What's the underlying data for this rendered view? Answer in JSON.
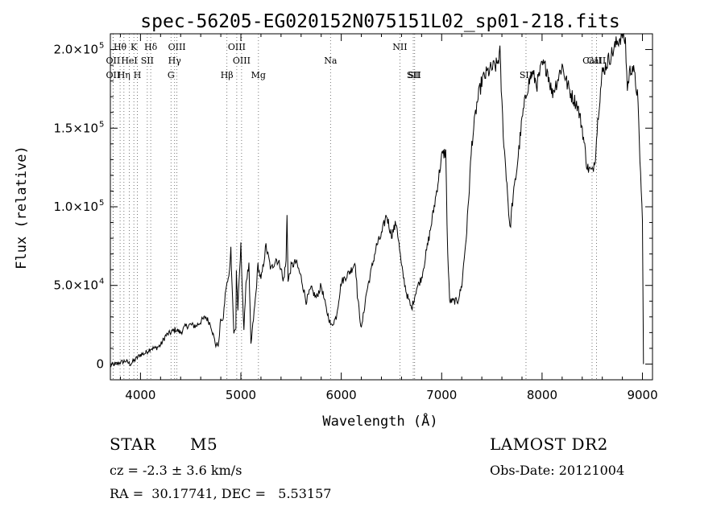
{
  "chart_data": {
    "type": "line",
    "title": "spec-56205-EG020152N075151L02_sp01-218.fits",
    "xlabel": "Wavelength (Å)",
    "ylabel": "Flux (relative)",
    "xlim": [
      3700,
      9100
    ],
    "ylim": [
      -0.1,
      2.1
    ],
    "y_multiplier_note": "×10^5",
    "xticks": [
      {
        "v": 4000,
        "label": "4000"
      },
      {
        "v": 5000,
        "label": "5000"
      },
      {
        "v": 6000,
        "label": "6000"
      },
      {
        "v": 7000,
        "label": "7000"
      },
      {
        "v": 8000,
        "label": "8000"
      },
      {
        "v": 9000,
        "label": "9000"
      }
    ],
    "yticks": [
      {
        "v": 0.0,
        "label": "0",
        "exp": ""
      },
      {
        "v": 0.5,
        "label": "5.0×10",
        "exp": "4"
      },
      {
        "v": 1.0,
        "label": "1.0×10",
        "exp": "5"
      },
      {
        "v": 1.5,
        "label": "1.5×10",
        "exp": "5"
      },
      {
        "v": 2.0,
        "label": "2.0×10",
        "exp": "5"
      }
    ],
    "lines": [
      {
        "name": "Hθ",
        "x": 3797,
        "row": 0
      },
      {
        "name": "K",
        "x": 3934,
        "row": 0
      },
      {
        "name": "Hδ",
        "x": 4102,
        "row": 0
      },
      {
        "name": "OIII",
        "x": 4363,
        "row": 0
      },
      {
        "name": "OIII",
        "x": 4959,
        "row": 0
      },
      {
        "name": "NII",
        "x": 6584,
        "row": 0
      },
      {
        "name": "OII",
        "x": 3727,
        "row": 1
      },
      {
        "name": "HeI",
        "x": 3889,
        "row": 1
      },
      {
        "name": "SII",
        "x": 4068,
        "row": 1
      },
      {
        "name": "Hγ",
        "x": 4340,
        "row": 1
      },
      {
        "name": "OIII",
        "x": 5007,
        "row": 1
      },
      {
        "name": "Na",
        "x": 5893,
        "row": 1
      },
      {
        "name": "OII",
        "x": 3727,
        "row": 2
      },
      {
        "name": "Hη",
        "x": 3835,
        "row": 2
      },
      {
        "name": "H",
        "x": 3969,
        "row": 2
      },
      {
        "name": "G",
        "x": 4304,
        "row": 2
      },
      {
        "name": "Hβ",
        "x": 4861,
        "row": 2
      },
      {
        "name": "Mg",
        "x": 5175,
        "row": 2
      },
      {
        "name": "SII",
        "x": 6717,
        "row": 2
      },
      {
        "name": "SII",
        "x": 6731,
        "row": 2
      },
      {
        "name": "CaII",
        "x": 8542,
        "row": 1
      },
      {
        "name": "CaII",
        "x": 8498,
        "row": 1
      },
      {
        "name": "SII",
        "x": 7840,
        "row": 2
      }
    ],
    "series": [
      {
        "x": [
          3700,
          3750,
          3800,
          3850,
          3900,
          3950,
          4000,
          4050,
          4100,
          4150,
          4200,
          4250,
          4300,
          4350,
          4400,
          4450,
          4500,
          4550,
          4600,
          4650,
          4700,
          4750,
          4780,
          4800,
          4820,
          4850,
          4880,
          4900,
          4930,
          4950,
          4955,
          4970,
          5000,
          5030,
          5050,
          5080,
          5100,
          5150,
          5170,
          5200,
          5250,
          5300,
          5350,
          5400,
          5420,
          5450,
          5460,
          5470,
          5500,
          5550,
          5600,
          5650,
          5700,
          5750,
          5800,
          5850,
          5900,
          5950,
          6000,
          6050,
          6100,
          6140,
          6160,
          6200,
          6250,
          6300,
          6350,
          6400,
          6450,
          6500,
          6550,
          6600,
          6650,
          6700,
          6750,
          6800,
          6850,
          6900,
          6950,
          7000,
          7040,
          7060,
          7080,
          7100,
          7130,
          7160,
          7200,
          7250,
          7300,
          7350,
          7400,
          7450,
          7500,
          7550,
          7580,
          7600,
          7620,
          7650,
          7680,
          7700,
          7750,
          7800,
          7850,
          7900,
          7950,
          8000,
          8050,
          8100,
          8150,
          8200,
          8250,
          8300,
          8350,
          8400,
          8450,
          8500,
          8530,
          8560,
          8600,
          8650,
          8700,
          8750,
          8800,
          8830,
          8850,
          8870,
          8900,
          8950,
          9000,
          9010
        ],
        "values": [
          -0.01,
          0.0,
          0.01,
          0.02,
          0.0,
          0.03,
          0.06,
          0.07,
          0.1,
          0.1,
          0.12,
          0.18,
          0.2,
          0.22,
          0.2,
          0.24,
          0.25,
          0.24,
          0.27,
          0.3,
          0.25,
          0.12,
          0.13,
          0.3,
          0.26,
          0.48,
          0.55,
          0.73,
          0.2,
          0.22,
          0.6,
          0.35,
          0.75,
          0.2,
          0.52,
          0.62,
          0.12,
          0.45,
          0.63,
          0.53,
          0.75,
          0.6,
          0.67,
          0.62,
          0.52,
          0.65,
          0.96,
          0.52,
          0.62,
          0.65,
          0.55,
          0.4,
          0.48,
          0.42,
          0.5,
          0.35,
          0.24,
          0.3,
          0.52,
          0.56,
          0.6,
          0.65,
          0.44,
          0.22,
          0.45,
          0.6,
          0.75,
          0.82,
          0.95,
          0.82,
          0.9,
          0.62,
          0.45,
          0.35,
          0.48,
          0.55,
          0.72,
          0.9,
          1.1,
          1.32,
          1.35,
          0.7,
          0.4,
          0.4,
          0.4,
          0.4,
          0.5,
          0.85,
          1.4,
          1.65,
          1.8,
          1.85,
          1.88,
          1.9,
          1.98,
          1.65,
          1.4,
          1.15,
          0.85,
          1.0,
          1.25,
          1.55,
          1.75,
          1.85,
          1.78,
          1.9,
          1.88,
          1.72,
          1.8,
          1.9,
          1.78,
          1.7,
          1.65,
          1.5,
          1.25,
          1.22,
          1.32,
          1.6,
          1.85,
          1.92,
          1.98,
          2.05,
          2.1,
          2.05,
          1.75,
          1.85,
          1.9,
          1.72,
          0.9,
          0.0
        ]
      }
    ]
  },
  "info": {
    "object_class": "STAR",
    "subclass": "M5",
    "survey": "LAMOST DR2",
    "cz": "cz = -2.3 ± 3.6 km/s",
    "obs_date": "Obs-Date: 20121004",
    "coords": "RA =  30.17741, DEC =   5.53157"
  }
}
